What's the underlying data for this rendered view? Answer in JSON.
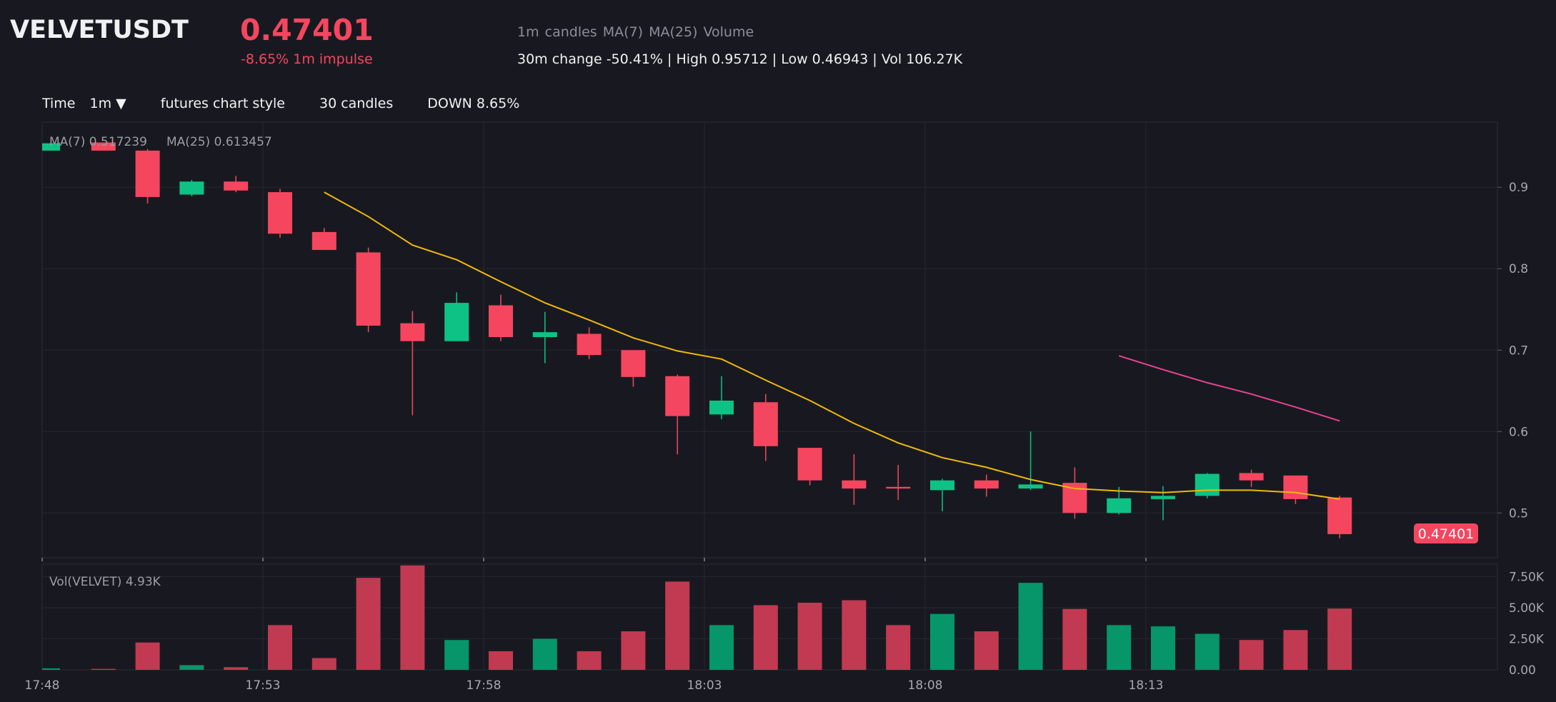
{
  "header": {
    "symbol": "VELVETUSDT",
    "price": "0.47401",
    "impulse": "-8.65% 1m impulse",
    "indicators": "1m candles   MA(7)   MA(25)   Volume",
    "stats": "30m change -50.41% | High 0.95712 | Low 0.46943 | Vol 106.27K"
  },
  "toolbar": {
    "time_label": "Time",
    "interval": "1m ▼",
    "style": "futures chart style",
    "count": "30 candles",
    "direction": "DOWN 8.65%"
  },
  "colors": {
    "up": "#0ec285",
    "down": "#f5465f",
    "ma7": "#f0b90b",
    "ma25": "#e8438f",
    "up_volume": "#06966a",
    "down_volume": "#c23a51"
  },
  "chart_data": {
    "type": "candlestick",
    "price_axis": {
      "ylim": [
        0.445,
        0.98
      ],
      "ticks": [
        "0.9",
        "0.8",
        "0.7",
        "0.6",
        "0.5"
      ]
    },
    "volume_axis": {
      "ylim": [
        0,
        8500
      ],
      "ticks": [
        "7.50K",
        "5.00K",
        "2.50K",
        "0.00"
      ]
    },
    "time_labels": [
      "17:48",
      "17:53",
      "17:58",
      "18:03",
      "18:08",
      "18:13"
    ],
    "last_price_label": "0.47401",
    "ma_legend": {
      "ma7": "MA(7) 0.517239",
      "ma25": "MA(25) 0.613457"
    },
    "volume_legend": "Vol(VELVET) 4.93K",
    "candles": [
      {
        "time": "17:48",
        "o": 0.945,
        "h": 0.955,
        "l": 0.945,
        "c": 0.954,
        "v": 120
      },
      {
        "time": "17:49",
        "o": 0.955,
        "h": 0.955,
        "l": 0.945,
        "c": 0.945,
        "v": 80
      },
      {
        "time": "17:50",
        "o": 0.945,
        "h": 0.947,
        "l": 0.88,
        "c": 0.888,
        "v": 2200
      },
      {
        "time": "17:51",
        "o": 0.891,
        "h": 0.909,
        "l": 0.889,
        "c": 0.907,
        "v": 380
      },
      {
        "time": "17:52",
        "o": 0.907,
        "h": 0.914,
        "l": 0.894,
        "c": 0.896,
        "v": 210
      },
      {
        "time": "17:53",
        "o": 0.894,
        "h": 0.898,
        "l": 0.838,
        "c": 0.843,
        "v": 3600
      },
      {
        "time": "17:54",
        "o": 0.845,
        "h": 0.85,
        "l": 0.823,
        "c": 0.823,
        "v": 950
      },
      {
        "time": "17:55",
        "o": 0.82,
        "h": 0.826,
        "l": 0.722,
        "c": 0.73,
        "v": 7400
      },
      {
        "time": "17:56",
        "o": 0.733,
        "h": 0.748,
        "l": 0.62,
        "c": 0.711,
        "v": 8400
      },
      {
        "time": "17:57",
        "o": 0.711,
        "h": 0.771,
        "l": 0.711,
        "c": 0.758,
        "v": 2400
      },
      {
        "time": "17:58",
        "o": 0.755,
        "h": 0.768,
        "l": 0.711,
        "c": 0.716,
        "v": 1500
      },
      {
        "time": "17:59",
        "o": 0.716,
        "h": 0.747,
        "l": 0.684,
        "c": 0.722,
        "v": 2500
      },
      {
        "time": "18:00",
        "o": 0.72,
        "h": 0.728,
        "l": 0.689,
        "c": 0.694,
        "v": 1500
      },
      {
        "time": "18:01",
        "o": 0.7,
        "h": 0.7,
        "l": 0.655,
        "c": 0.667,
        "v": 3100
      },
      {
        "time": "18:02",
        "o": 0.668,
        "h": 0.67,
        "l": 0.572,
        "c": 0.619,
        "v": 7100
      },
      {
        "time": "18:03",
        "o": 0.621,
        "h": 0.668,
        "l": 0.615,
        "c": 0.638,
        "v": 3600
      },
      {
        "time": "18:04",
        "o": 0.636,
        "h": 0.646,
        "l": 0.564,
        "c": 0.582,
        "v": 5200
      },
      {
        "time": "18:05",
        "o": 0.58,
        "h": 0.58,
        "l": 0.534,
        "c": 0.54,
        "v": 5400
      },
      {
        "time": "18:06",
        "o": 0.54,
        "h": 0.572,
        "l": 0.51,
        "c": 0.53,
        "v": 5600
      },
      {
        "time": "18:07",
        "o": 0.532,
        "h": 0.559,
        "l": 0.516,
        "c": 0.53,
        "v": 3600
      },
      {
        "time": "18:08",
        "o": 0.528,
        "h": 0.542,
        "l": 0.502,
        "c": 0.54,
        "v": 4500
      },
      {
        "time": "18:09",
        "o": 0.54,
        "h": 0.547,
        "l": 0.52,
        "c": 0.53,
        "v": 3100
      },
      {
        "time": "18:10",
        "o": 0.53,
        "h": 0.6,
        "l": 0.528,
        "c": 0.535,
        "v": 7000
      },
      {
        "time": "18:11",
        "o": 0.537,
        "h": 0.556,
        "l": 0.493,
        "c": 0.5,
        "v": 4900
      },
      {
        "time": "18:12",
        "o": 0.5,
        "h": 0.532,
        "l": 0.498,
        "c": 0.518,
        "v": 3600
      },
      {
        "time": "18:13",
        "o": 0.517,
        "h": 0.533,
        "l": 0.491,
        "c": 0.521,
        "v": 3500
      },
      {
        "time": "18:14",
        "o": 0.521,
        "h": 0.549,
        "l": 0.518,
        "c": 0.548,
        "v": 2900
      },
      {
        "time": "18:15",
        "o": 0.549,
        "h": 0.553,
        "l": 0.532,
        "c": 0.54,
        "v": 2400
      },
      {
        "time": "18:16",
        "o": 0.546,
        "h": 0.546,
        "l": 0.511,
        "c": 0.517,
        "v": 3200
      },
      {
        "time": "18:17",
        "o": 0.519,
        "h": 0.521,
        "l": 0.469,
        "c": 0.474,
        "v": 4930
      }
    ],
    "ma7": [
      null,
      null,
      null,
      null,
      null,
      null,
      0.894,
      0.864,
      0.829,
      0.811,
      0.784,
      0.758,
      0.737,
      0.715,
      0.699,
      0.689,
      0.663,
      0.638,
      0.61,
      0.586,
      0.568,
      0.556,
      0.541,
      0.53,
      0.527,
      0.525,
      0.528,
      0.528,
      0.525,
      0.517
    ],
    "ma25": [
      null,
      null,
      null,
      null,
      null,
      null,
      null,
      null,
      null,
      null,
      null,
      null,
      null,
      null,
      null,
      null,
      null,
      null,
      null,
      null,
      null,
      null,
      null,
      null,
      0.693,
      0.676,
      0.66,
      0.646,
      0.63,
      0.613
    ]
  }
}
